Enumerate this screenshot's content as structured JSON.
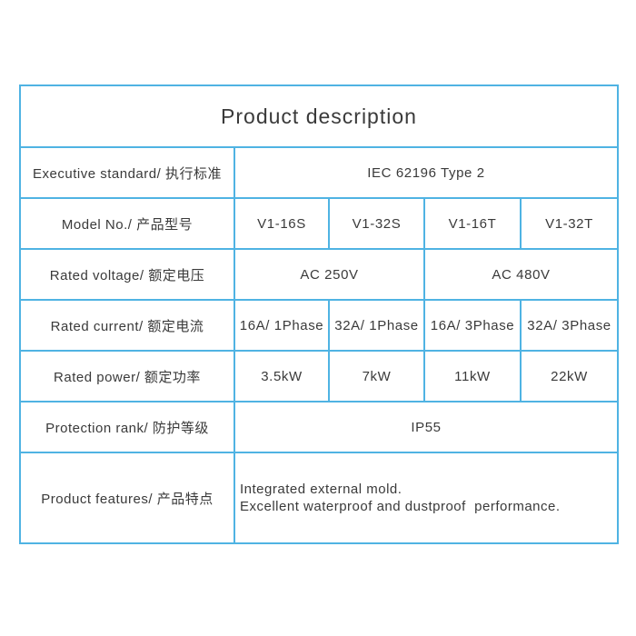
{
  "title": "Product  description",
  "rows": {
    "standard": {
      "label": "Executive standard/ 执行标准",
      "value": "IEC 62196 Type 2"
    },
    "model": {
      "label": "Model No./ 产品型号",
      "values": [
        "V1-16S",
        "V1-32S",
        "V1-16T",
        "V1-32T"
      ]
    },
    "voltage": {
      "label": "Rated voltage/ 额定电压",
      "values": [
        "AC 250V",
        "AC 480V"
      ]
    },
    "current": {
      "label": "Rated current/ 额定电流",
      "values": [
        "16A/ 1Phase",
        "32A/ 1Phase",
        "16A/ 3Phase",
        "32A/ 3Phase"
      ]
    },
    "power": {
      "label": "Rated power/ 额定功率",
      "values": [
        "3.5kW",
        "7kW",
        "11kW",
        "22kW"
      ]
    },
    "protection": {
      "label": "Protection rank/ 防护等级",
      "value": "IP55"
    },
    "features": {
      "label": "Product features/ 产品特点",
      "lines": [
        "Integrated external mold.",
        "Excellent waterproof and dustproof  performance."
      ]
    }
  },
  "colors": {
    "border": "#4fb3e3",
    "text": "#3a3a3a"
  }
}
